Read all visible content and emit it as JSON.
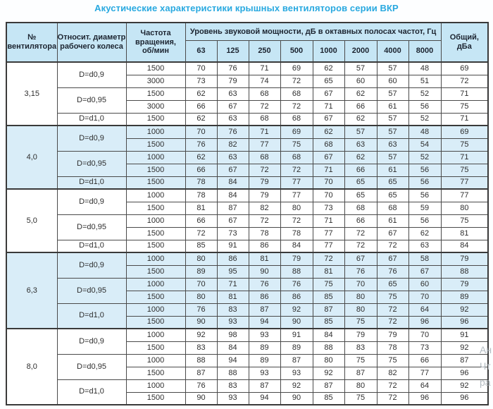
{
  "title": "Акустические характеристики крышных вентиляторов серии ВКР",
  "colors": {
    "accent": "#29a9e0",
    "header_bg": "#c6e6f5",
    "shaded_row_bg": "#d9edf8",
    "border": "#4a4a4a"
  },
  "watermark": {
    "fragments": [
      "Ан",
      "Чт",
      "ра"
    ]
  },
  "table": {
    "headers": {
      "fan": "№\nвентилятора",
      "diameter": "Относит. диаметр\nрабочего колеса",
      "speed": "Частота\nвращения,\nоб/мин",
      "level_group": "Уровень звуковой мощности, дБ в октавных полосах частот, Гц",
      "frequencies": [
        "63",
        "125",
        "250",
        "500",
        "1000",
        "2000",
        "4000",
        "8000"
      ],
      "total": "Общий,\nдБа"
    },
    "groups": [
      {
        "fan": "3,15",
        "shaded": false,
        "diameters": [
          {
            "label": "D=d0,9",
            "rows": [
              {
                "rpm": "1500",
                "levels": [
                  70,
                  76,
                  71,
                  69,
                  62,
                  57,
                  57,
                  48
                ],
                "total": 69
              },
              {
                "rpm": "3000",
                "levels": [
                  73,
                  79,
                  74,
                  72,
                  65,
                  60,
                  60,
                  51
                ],
                "total": 72
              }
            ]
          },
          {
            "label": "D=d0,95",
            "rows": [
              {
                "rpm": "1500",
                "levels": [
                  62,
                  63,
                  68,
                  68,
                  67,
                  62,
                  57,
                  52
                ],
                "total": 71
              },
              {
                "rpm": "3000",
                "levels": [
                  66,
                  67,
                  72,
                  72,
                  71,
                  66,
                  61,
                  56
                ],
                "total": 75
              }
            ]
          },
          {
            "label": "D=d1,0",
            "rows": [
              {
                "rpm": "1500",
                "levels": [
                  62,
                  63,
                  68,
                  68,
                  67,
                  62,
                  57,
                  52
                ],
                "total": 71
              }
            ]
          }
        ]
      },
      {
        "fan": "4,0",
        "shaded": true,
        "diameters": [
          {
            "label": "D=d0,9",
            "rows": [
              {
                "rpm": "1000",
                "levels": [
                  70,
                  76,
                  71,
                  69,
                  62,
                  57,
                  57,
                  48
                ],
                "total": 69
              },
              {
                "rpm": "1500",
                "levels": [
                  76,
                  82,
                  77,
                  75,
                  68,
                  63,
                  63,
                  54
                ],
                "total": 75
              }
            ]
          },
          {
            "label": "D=d0,95",
            "rows": [
              {
                "rpm": "1000",
                "levels": [
                  62,
                  63,
                  68,
                  68,
                  67,
                  62,
                  57,
                  52
                ],
                "total": 71
              },
              {
                "rpm": "1500",
                "levels": [
                  66,
                  67,
                  72,
                  72,
                  71,
                  66,
                  61,
                  56
                ],
                "total": 75
              }
            ]
          },
          {
            "label": "D=d1,0",
            "rows": [
              {
                "rpm": "1500",
                "levels": [
                  78,
                  84,
                  79,
                  77,
                  70,
                  65,
                  65,
                  56
                ],
                "total": 77
              }
            ]
          }
        ]
      },
      {
        "fan": "5,0",
        "shaded": false,
        "diameters": [
          {
            "label": "D=d0,9",
            "rows": [
              {
                "rpm": "1000",
                "levels": [
                  78,
                  84,
                  79,
                  77,
                  70,
                  65,
                  65,
                  56
                ],
                "total": 77
              },
              {
                "rpm": "1500",
                "levels": [
                  81,
                  87,
                  82,
                  80,
                  73,
                  68,
                  68,
                  59
                ],
                "total": 80
              }
            ]
          },
          {
            "label": "D=d0,95",
            "rows": [
              {
                "rpm": "1000",
                "levels": [
                  66,
                  67,
                  72,
                  72,
                  71,
                  66,
                  61,
                  56
                ],
                "total": 75
              },
              {
                "rpm": "1500",
                "levels": [
                  72,
                  73,
                  78,
                  78,
                  77,
                  72,
                  67,
                  62
                ],
                "total": 81
              }
            ]
          },
          {
            "label": "D=d1,0",
            "rows": [
              {
                "rpm": "1500",
                "levels": [
                  85,
                  91,
                  86,
                  84,
                  77,
                  72,
                  72,
                  63
                ],
                "total": 84
              }
            ]
          }
        ]
      },
      {
        "fan": "6,3",
        "shaded": true,
        "diameters": [
          {
            "label": "D=d0,9",
            "rows": [
              {
                "rpm": "1000",
                "levels": [
                  80,
                  86,
                  81,
                  79,
                  72,
                  67,
                  67,
                  58
                ],
                "total": 79
              },
              {
                "rpm": "1500",
                "levels": [
                  89,
                  95,
                  90,
                  88,
                  81,
                  76,
                  76,
                  67
                ],
                "total": 88
              }
            ]
          },
          {
            "label": "D=d0,95",
            "rows": [
              {
                "rpm": "1000",
                "levels": [
                  70,
                  71,
                  76,
                  76,
                  75,
                  70,
                  65,
                  60
                ],
                "total": 79
              },
              {
                "rpm": "1500",
                "levels": [
                  80,
                  81,
                  86,
                  86,
                  85,
                  80,
                  75,
                  70
                ],
                "total": 89
              }
            ]
          },
          {
            "label": "D=d1,0",
            "rows": [
              {
                "rpm": "1000",
                "levels": [
                  76,
                  83,
                  87,
                  92,
                  87,
                  80,
                  72,
                  64
                ],
                "total": 92
              },
              {
                "rpm": "1500",
                "levels": [
                  90,
                  93,
                  94,
                  90,
                  85,
                  75,
                  72,
                  96
                ],
                "total": 96
              }
            ]
          }
        ]
      },
      {
        "fan": "8,0",
        "shaded": false,
        "diameters": [
          {
            "label": "D=d0,9",
            "rows": [
              {
                "rpm": "1000",
                "levels": [
                  92,
                  98,
                  93,
                  91,
                  84,
                  79,
                  79,
                  70
                ],
                "total": 91
              },
              {
                "rpm": "1500",
                "levels": [
                  83,
                  84,
                  89,
                  89,
                  88,
                  83,
                  78,
                  73
                ],
                "total": 92
              }
            ]
          },
          {
            "label": "D=d0,95",
            "rows": [
              {
                "rpm": "1000",
                "levels": [
                  88,
                  94,
                  89,
                  87,
                  80,
                  75,
                  75,
                  66
                ],
                "total": 87
              },
              {
                "rpm": "1500",
                "levels": [
                  87,
                  88,
                  93,
                  93,
                  92,
                  87,
                  82,
                  77
                ],
                "total": 96
              }
            ]
          },
          {
            "label": "D=d1,0",
            "rows": [
              {
                "rpm": "1000",
                "levels": [
                  76,
                  83,
                  87,
                  92,
                  87,
                  80,
                  72,
                  64
                ],
                "total": 92
              },
              {
                "rpm": "1500",
                "levels": [
                  90,
                  93,
                  94,
                  90,
                  85,
                  75,
                  72,
                  96
                ],
                "total": 96
              }
            ]
          }
        ]
      }
    ]
  }
}
